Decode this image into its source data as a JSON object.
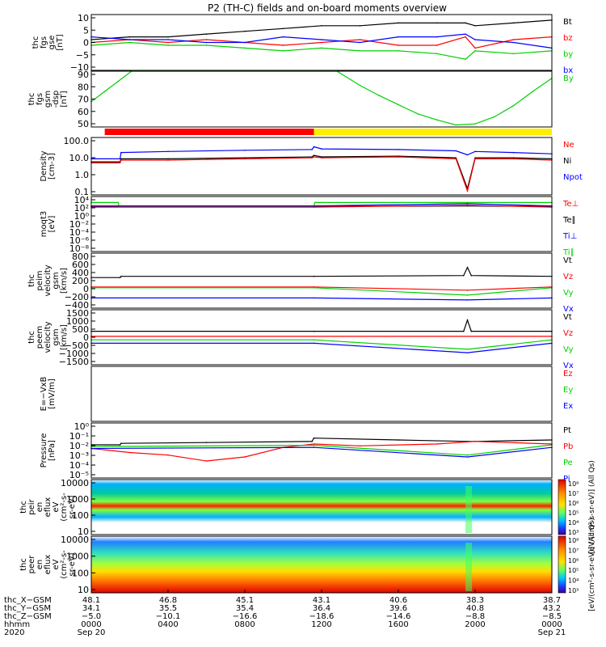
{
  "title": "P2 (TH-C) fields and on-board moments overview",
  "colors": {
    "black": "#000000",
    "red": "#ff0000",
    "green": "#00d000",
    "blue": "#0000ff",
    "yellow": "#ffee00"
  },
  "chart_data": [
    {
      "type": "line",
      "panel": "fgs",
      "ylabel": [
        "thc",
        "fgs",
        "gse",
        "[nT]"
      ],
      "yticks": [
        "10",
        "5",
        "0",
        "−5",
        "−10"
      ],
      "ylim": [
        -10,
        10
      ],
      "legend": [
        "Bt",
        "bz",
        "by",
        "bx"
      ],
      "series": [
        {
          "name": "Bt",
          "color": "black",
          "x": [
            0,
            2,
            4,
            6,
            8,
            10,
            12,
            14,
            16,
            18,
            19.5,
            20,
            22,
            24
          ],
          "y": [
            1,
            2,
            2,
            3,
            4,
            5,
            6,
            6,
            7,
            7,
            7,
            6,
            7,
            8
          ]
        },
        {
          "name": "bz",
          "color": "red",
          "x": [
            0,
            2,
            4,
            6,
            8,
            10,
            12,
            14,
            16,
            18,
            19.5,
            20,
            22,
            24
          ],
          "y": [
            0,
            1,
            0,
            1,
            0,
            -1,
            0,
            1,
            -1,
            -1,
            2,
            -2,
            1,
            2
          ]
        },
        {
          "name": "by",
          "color": "green",
          "x": [
            0,
            2,
            4,
            6,
            8,
            10,
            12,
            14,
            16,
            18,
            19.5,
            20,
            22,
            24
          ],
          "y": [
            -1,
            0,
            -1,
            -1,
            -2,
            -3,
            -2,
            -3,
            -3,
            -4,
            -6,
            -3,
            -4,
            -3
          ]
        },
        {
          "name": "bx",
          "color": "blue",
          "x": [
            0,
            2,
            4,
            6,
            8,
            10,
            12,
            14,
            16,
            18,
            19.5,
            20,
            22,
            24
          ],
          "y": [
            2,
            1,
            1,
            0,
            0,
            2,
            1,
            0,
            2,
            2,
            3,
            1,
            0,
            -2
          ]
        }
      ]
    },
    {
      "type": "line",
      "panel": "gsm-dsp",
      "ylabel": [
        "thc",
        "fgs",
        "gsm",
        "-dsp",
        "[nT]"
      ],
      "yticks": [
        "90",
        "80",
        "70",
        "60",
        "50"
      ],
      "ylim": [
        45,
        100
      ],
      "legend": [
        "By"
      ],
      "series": [
        {
          "name": "By",
          "color": "green",
          "x": [
            0,
            0.7,
            1.4,
            2.1,
            12.8,
            14,
            15,
            16,
            17,
            18,
            19,
            20,
            21,
            22,
            23,
            24
          ],
          "y": [
            70,
            80,
            90,
            100,
            100,
            86,
            76,
            67,
            58,
            52,
            47,
            48,
            55,
            66,
            80,
            93
          ]
        }
      ]
    },
    {
      "type": "bar",
      "panel": "mode-bar",
      "segments": [
        {
          "x0": 0.7,
          "x1": 11.6,
          "color": "red"
        },
        {
          "x0": 11.6,
          "x1": 24,
          "color": "yellow"
        }
      ]
    },
    {
      "type": "line",
      "panel": "density",
      "scale": "log",
      "ylabel": [
        "Density",
        "[cm-3]"
      ],
      "yticks": [
        "100.0",
        "10.0",
        "1.0",
        "0.1"
      ],
      "ylim": [
        0.01,
        200
      ],
      "legend": [
        "Ne",
        "Ni",
        "Npot"
      ],
      "series": [
        {
          "name": "Npot",
          "color": "blue",
          "x": [
            0,
            1.5,
            1.55,
            4,
            8,
            11.5,
            11.6,
            12,
            16,
            19,
            19.6,
            20,
            22,
            24
          ],
          "y": [
            5,
            5,
            15,
            18,
            22,
            25,
            40,
            28,
            25,
            20,
            10,
            18,
            15,
            12
          ]
        },
        {
          "name": "Ni",
          "color": "black",
          "x": [
            0,
            1.5,
            1.55,
            4,
            8,
            11.5,
            11.6,
            12,
            16,
            19,
            19.6,
            20,
            22,
            24
          ],
          "y": [
            3,
            3,
            5,
            5,
            6,
            7,
            9,
            7,
            8,
            6,
            0.03,
            6,
            6,
            5
          ]
        },
        {
          "name": "Ne",
          "color": "red",
          "x": [
            0,
            1.5,
            1.55,
            4,
            8,
            11.5,
            11.6,
            12,
            16,
            19,
            19.6,
            20,
            22,
            24
          ],
          "y": [
            2.5,
            2.5,
            4,
            4,
            5,
            6,
            7,
            6,
            7,
            5,
            0.02,
            5,
            5,
            4
          ]
        }
      ]
    },
    {
      "type": "line",
      "panel": "temperature",
      "scale": "log",
      "ylabel": [
        "moqt3",
        "[eV]"
      ],
      "yticks": [
        "10⁴",
        "10²",
        "10⁰",
        "10⁻²",
        "10⁻⁴",
        "10⁻⁶",
        "10⁻⁸"
      ],
      "ylim": [
        1e-09,
        100000.0
      ],
      "legend": [
        "Te⊥",
        "Te∥",
        "Ti⊥",
        "Ti∥"
      ],
      "series": [
        {
          "name": "Te∥",
          "color": "black",
          "x": [
            0,
            11.6,
            19.6,
            24
          ],
          "y": [
            300,
            300,
            400,
            300
          ]
        },
        {
          "name": "Ti∥",
          "color": "green",
          "x": [
            0,
            1.4,
            1.45,
            11.6,
            11.65,
            24
          ],
          "y": [
            3000,
            3000,
            300,
            300,
            3000,
            3000
          ]
        },
        {
          "name": "Ti⊥",
          "color": "blue",
          "x": [
            0,
            11.6,
            19.6,
            24
          ],
          "y": [
            400,
            400,
            1500,
            400
          ]
        },
        {
          "name": "Te⊥",
          "color": "red",
          "x": [
            0,
            11.6,
            19.6,
            24
          ],
          "y": [
            200,
            200,
            600,
            200
          ]
        }
      ]
    },
    {
      "type": "line",
      "panel": "peim-velocity",
      "ylabel": [
        "thc",
        "peim",
        "velocity",
        "gsm",
        "[km/s]"
      ],
      "yticks": [
        "800",
        "600",
        "400",
        "200",
        "0",
        "−200",
        "−400"
      ],
      "ylim": [
        -500,
        850
      ],
      "legend": [
        "Vt",
        "Vz",
        "Vy",
        "Vx"
      ],
      "series": [
        {
          "name": "Vt",
          "color": "black",
          "x": [
            0,
            1.5,
            1.55,
            11.6,
            19.4,
            19.6,
            19.8,
            24
          ],
          "y": [
            250,
            250,
            280,
            280,
            300,
            500,
            300,
            280
          ]
        },
        {
          "name": "Vz",
          "color": "red",
          "x": [
            0,
            11.6,
            19.6,
            24
          ],
          "y": [
            20,
            20,
            -60,
            20
          ]
        },
        {
          "name": "Vy",
          "color": "green",
          "x": [
            0,
            11.6,
            19.6,
            24
          ],
          "y": [
            0,
            0,
            -180,
            0
          ]
        },
        {
          "name": "Vx",
          "color": "blue",
          "x": [
            0,
            11.6,
            19.6,
            24
          ],
          "y": [
            -250,
            -250,
            -300,
            -250
          ]
        }
      ]
    },
    {
      "type": "line",
      "panel": "peem-velocity",
      "ylabel": [
        "thc",
        "peem",
        "velocity",
        "gsm",
        "[km/s]"
      ],
      "yticks": [
        "1500",
        "1000",
        "500",
        "0",
        "−500",
        "−1000",
        "−1500"
      ],
      "ylim": [
        -1600,
        1600
      ],
      "legend": [
        "Vt",
        "Vz",
        "Vy",
        "Vx"
      ],
      "series": [
        {
          "name": "Vt",
          "color": "black",
          "x": [
            0,
            11.6,
            19.4,
            19.6,
            19.8,
            24
          ],
          "y": [
            350,
            350,
            350,
            1000,
            350,
            350
          ]
        },
        {
          "name": "Vz",
          "color": "red",
          "x": [
            0,
            24
          ],
          "y": [
            50,
            50
          ]
        },
        {
          "name": "Vy",
          "color": "green",
          "x": [
            0,
            11.6,
            19.6,
            24
          ],
          "y": [
            -150,
            -150,
            -700,
            -150
          ]
        },
        {
          "name": "Vx",
          "color": "blue",
          "x": [
            0,
            11.6,
            19.6,
            24
          ],
          "y": [
            -350,
            -350,
            -900,
            -350
          ]
        }
      ]
    },
    {
      "type": "line",
      "panel": "efield",
      "ylabel": [
        "E=−VxB",
        "[mV/m]"
      ],
      "yticks": [],
      "ylim": [
        -1,
        1
      ],
      "legend": [
        "Ez",
        "Ey",
        "Ex"
      ],
      "series": []
    },
    {
      "type": "line",
      "panel": "pressure",
      "scale": "log",
      "ylabel": [
        "Pressure",
        "[nPa]"
      ],
      "yticks": [
        "10⁰",
        "10⁻¹",
        "10⁻²",
        "10⁻³",
        "10⁻⁴",
        "10⁻⁵"
      ],
      "ylim": [
        1e-06,
        3
      ],
      "legend": [
        "Pt",
        "Pb",
        "Pe",
        "Pi"
      ],
      "series": [
        {
          "name": "Pt",
          "color": "black",
          "x": [
            0,
            1.5,
            1.55,
            6,
            11.5,
            11.6,
            16,
            19.6,
            20,
            24
          ],
          "y": [
            0.008,
            0.008,
            0.012,
            0.015,
            0.02,
            0.05,
            0.03,
            0.02,
            0.02,
            0.03
          ]
        },
        {
          "name": "Pb",
          "color": "red",
          "x": [
            0,
            2,
            4,
            6,
            8,
            10,
            11.6,
            14,
            18,
            20,
            24
          ],
          "y": [
            0.003,
            0.001,
            0.0005,
            0.0001,
            0.0003,
            0.004,
            0.01,
            0.006,
            0.01,
            0.02,
            0.01
          ]
        },
        {
          "name": "Pe",
          "color": "green",
          "x": [
            0,
            11.6,
            19.6,
            24
          ],
          "y": [
            0.005,
            0.007,
            0.0005,
            0.008
          ]
        },
        {
          "name": "Pi",
          "color": "blue",
          "x": [
            0,
            11.6,
            19.6,
            24
          ],
          "y": [
            0.003,
            0.004,
            0.0003,
            0.004
          ]
        }
      ]
    },
    {
      "type": "heatmap",
      "panel": "peir",
      "ylabel": [
        "thc",
        "peir",
        "en",
        "eflux",
        "eV",
        "(cm²-s-",
        "sr-eV)"
      ],
      "yticks": [
        "10000",
        "1000",
        "100",
        "10"
      ],
      "colorbar": {
        "label": "[eV/(cm²-s-sr-eV)] (All Qs)",
        "ticks": [
          "10⁸",
          "10⁷",
          "10⁶",
          "10⁵",
          "10⁴",
          "10³"
        ]
      }
    },
    {
      "type": "heatmap",
      "panel": "peer",
      "ylabel": [
        "thc",
        "peer",
        "en",
        "eflux",
        "eV",
        "(cm²-s-",
        "sr-eV)"
      ],
      "yticks": [
        "10000",
        "1000",
        "100",
        "10"
      ],
      "colorbar": {
        "label": "[eV/(cm²-s-sr-eV)] (All Qs)",
        "ticks": [
          "10⁸",
          "10⁷",
          "10⁶",
          "10⁵",
          "10⁴",
          "10³"
        ]
      }
    }
  ],
  "x_axis": {
    "rows": [
      {
        "label": "thc_X−GSM",
        "values": [
          "48.1",
          "46.8",
          "45.1",
          "43.1",
          "40.6",
          "38.3",
          "38.7"
        ]
      },
      {
        "label": "thc_Y−GSM",
        "values": [
          "34.1",
          "35.5",
          "35.4",
          "36.4",
          "39.6",
          "40.8",
          "43.2"
        ]
      },
      {
        "label": "thc_Z−GSM",
        "values": [
          "−5.0",
          "−10.1",
          "−16.6",
          "−18.6",
          "−14.6",
          "−8.8",
          "−8.5"
        ]
      },
      {
        "label": "hhmm",
        "values": [
          "0000",
          "0400",
          "0800",
          "1200",
          "1600",
          "2000",
          "0000"
        ]
      },
      {
        "label": "2020",
        "values": [
          "Sep 20",
          "",
          "",
          "",
          "",
          "",
          "Sep 21"
        ]
      }
    ]
  }
}
